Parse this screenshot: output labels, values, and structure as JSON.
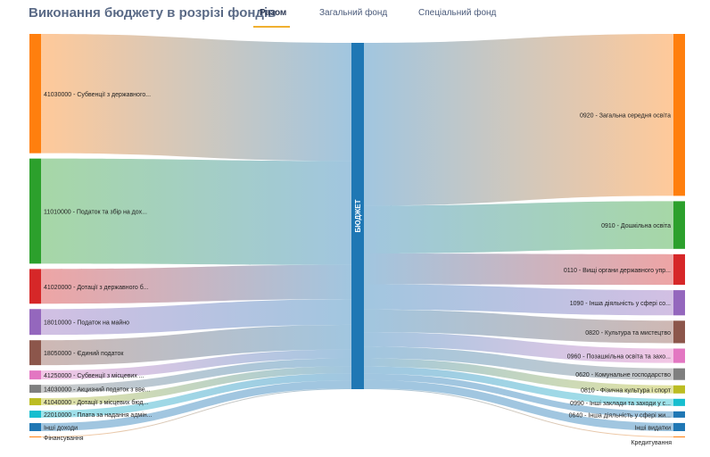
{
  "page": {
    "title": "Виконання бюджету в розрізі фондів"
  },
  "tabs": [
    {
      "label": "Разом",
      "active": true
    },
    {
      "label": "Загальний фонд",
      "active": false
    },
    {
      "label": "Спеціальний фонд",
      "active": false
    }
  ],
  "diagram": {
    "type": "sankey",
    "center_node": {
      "label": "БЮДЖЕТ",
      "color": "#1f77b4"
    },
    "income": [
      {
        "label": "41030000 - Субвенції з державного...",
        "value": 134,
        "color": "#ff7f0e"
      },
      {
        "label": "11010000 - Податок та збір на дох...",
        "value": 118,
        "color": "#2ca02c"
      },
      {
        "label": "41020000 - Дотації з державного б...",
        "value": 39,
        "color": "#d62728"
      },
      {
        "label": "18010000 - Податок на майно",
        "value": 29,
        "color": "#9467bd"
      },
      {
        "label": "18050000 - Єдиний податок",
        "value": 28,
        "color": "#8c564b"
      },
      {
        "label": "41250000 - Субвенції з місцевих ...",
        "value": 10,
        "color": "#e377c2"
      },
      {
        "label": "14030000 - Акцизний податок з вве...",
        "value": 9,
        "color": "#7f7f7f"
      },
      {
        "label": "41040000 - Дотації з місцевих бюд...",
        "value": 8,
        "color": "#bcbd22"
      },
      {
        "label": "22010000 - Плата за надання адмін...",
        "value": 8,
        "color": "#17becf"
      },
      {
        "label": "Інші доходи",
        "value": 9,
        "color": "#1f77b4"
      },
      {
        "label": "Фінансування",
        "value": 1,
        "color": "#ff7f0e"
      }
    ],
    "expense": [
      {
        "label": "0920 - Загальна середня освіта",
        "value": 180,
        "color": "#ff7f0e"
      },
      {
        "label": "0910 - Дошкільна освіта",
        "value": 53,
        "color": "#2ca02c"
      },
      {
        "label": "0110 - Вищі органи державного упр...",
        "value": 34,
        "color": "#d62728"
      },
      {
        "label": "1090 - Інша діяльність у сфері со...",
        "value": 28,
        "color": "#9467bd"
      },
      {
        "label": "0820 - Культура та мистецтво",
        "value": 25,
        "color": "#8c564b"
      },
      {
        "label": "0960 - Позашкільна освіта та захо...",
        "value": 16,
        "color": "#e377c2"
      },
      {
        "label": "0620 - Комунальне господарство",
        "value": 13,
        "color": "#7f7f7f"
      },
      {
        "label": "0810 - Фізична культура і спорт",
        "value": 9,
        "color": "#bcbd22"
      },
      {
        "label": "0990 - Інші заклади та заходи у с...",
        "value": 8,
        "color": "#17becf"
      },
      {
        "label": "0640 - Інша діяльність у сфері жи...",
        "value": 7,
        "color": "#1f77b4"
      },
      {
        "label": "Інші видатки",
        "value": 9,
        "color": "#1f77b4"
      },
      {
        "label": "Кредитування",
        "value": 1,
        "color": "#ff7f0e"
      }
    ]
  }
}
